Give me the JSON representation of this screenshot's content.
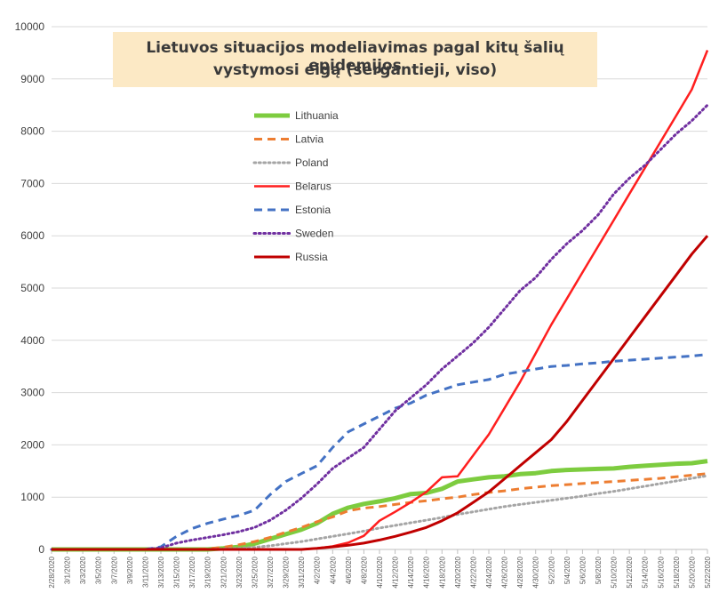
{
  "chart_data": {
    "type": "line",
    "title_lines": [
      "Lietuvos situacijos modeliavimas pagal kitų šalių epidemijos",
      "vystymosi eigą (sergantieji, viso)"
    ],
    "xlabel": "",
    "ylabel": "",
    "ylim": [
      0,
      10000
    ],
    "yticks": [
      0,
      1000,
      2000,
      3000,
      4000,
      5000,
      6000,
      7000,
      8000,
      9000,
      10000
    ],
    "grid": "horizontal",
    "legend_position": "upper-left-inside",
    "x_tick_labels": [
      "2/28/2020",
      "3/1/2020",
      "3/3/2020",
      "3/5/2020",
      "3/7/2020",
      "3/9/2020",
      "3/11/2020",
      "3/13/2020",
      "3/15/2020",
      "3/17/2020",
      "3/19/2020",
      "3/21/2020",
      "3/23/2020",
      "3/25/2020",
      "3/27/2020",
      "3/29/2020",
      "3/31/2020",
      "4/2/2020",
      "4/4/2020",
      "4/6/2020",
      "4/8/2020",
      "4/10/2020",
      "4/12/2020",
      "4/14/2020",
      "4/16/2020",
      "4/18/2020",
      "4/20/2020",
      "4/22/2020",
      "4/24/2020",
      "4/26/2020",
      "4/28/2020",
      "4/30/2020",
      "5/2/2020",
      "5/4/2020",
      "5/6/2020",
      "5/8/2020",
      "5/10/2020",
      "5/12/2020",
      "5/14/2020",
      "5/16/2020",
      "5/18/2020",
      "5/20/2020",
      "5/22/2020"
    ],
    "x_dates": [
      "2020-02-28",
      "2020-03-05",
      "2020-03-11",
      "2020-03-13",
      "2020-03-15",
      "2020-03-17",
      "2020-03-19",
      "2020-03-21",
      "2020-03-23",
      "2020-03-25",
      "2020-03-27",
      "2020-03-29",
      "2020-03-31",
      "2020-04-02",
      "2020-04-04",
      "2020-04-06",
      "2020-04-08",
      "2020-04-10",
      "2020-04-12",
      "2020-04-14",
      "2020-04-16",
      "2020-04-18",
      "2020-04-20",
      "2020-04-22",
      "2020-04-24",
      "2020-04-26",
      "2020-04-28",
      "2020-04-30",
      "2020-05-02",
      "2020-05-04",
      "2020-05-06",
      "2020-05-08",
      "2020-05-10",
      "2020-05-12",
      "2020-05-14",
      "2020-05-16",
      "2020-05-18",
      "2020-05-20",
      "2020-05-22"
    ],
    "series": [
      {
        "name": "Lithuania",
        "color": "#7dcc3f",
        "dash": "solid",
        "width": 5,
        "values": [
          0,
          0,
          0,
          0,
          0,
          0,
          0,
          20,
          50,
          110,
          200,
          290,
          380,
          500,
          680,
          800,
          870,
          920,
          980,
          1060,
          1080,
          1160,
          1300,
          1340,
          1380,
          1400,
          1440,
          1460,
          1500,
          1520,
          1530,
          1540,
          1550,
          1580,
          1600,
          1620,
          1640,
          1650,
          1690
        ]
      },
      {
        "name": "Latvia",
        "color": "#ed7d31",
        "dash": "dash",
        "width": 3,
        "values": [
          0,
          0,
          0,
          0,
          0,
          0,
          10,
          40,
          90,
          150,
          230,
          330,
          420,
          530,
          620,
          740,
          790,
          820,
          860,
          900,
          930,
          970,
          1000,
          1050,
          1090,
          1120,
          1160,
          1190,
          1220,
          1240,
          1260,
          1280,
          1300,
          1320,
          1340,
          1360,
          1390,
          1420,
          1450
        ]
      },
      {
        "name": "Poland",
        "color": "#a5a5a5",
        "dash": "dot",
        "width": 3,
        "values": [
          0,
          0,
          0,
          0,
          0,
          0,
          0,
          10,
          20,
          40,
          70,
          110,
          150,
          200,
          250,
          300,
          350,
          410,
          460,
          510,
          560,
          610,
          670,
          720,
          770,
          820,
          860,
          900,
          940,
          980,
          1020,
          1070,
          1110,
          1160,
          1210,
          1260,
          1310,
          1360,
          1410
        ]
      },
      {
        "name": "Belarus",
        "color": "#ff1f1f",
        "dash": "solid",
        "width": 2.5,
        "values": [
          0,
          0,
          0,
          0,
          0,
          0,
          0,
          0,
          0,
          0,
          0,
          0,
          0,
          20,
          60,
          130,
          260,
          550,
          720,
          900,
          1100,
          1380,
          1400,
          1800,
          2200,
          2700,
          3200,
          3750,
          4300,
          4800,
          5300,
          5800,
          6300,
          6800,
          7300,
          7800,
          8300,
          8800,
          9550
        ]
      },
      {
        "name": "Estonia",
        "color": "#4472c4",
        "dash": "dash",
        "width": 3,
        "values": [
          0,
          0,
          0,
          50,
          250,
          400,
          500,
          580,
          650,
          750,
          1050,
          1300,
          1450,
          1600,
          1950,
          2250,
          2400,
          2550,
          2700,
          2800,
          2950,
          3050,
          3150,
          3200,
          3250,
          3350,
          3400,
          3450,
          3500,
          3520,
          3550,
          3570,
          3600,
          3620,
          3640,
          3660,
          3680,
          3700,
          3730
        ]
      },
      {
        "name": "Sweden",
        "color": "#7030a0",
        "dash": "dot",
        "width": 3,
        "values": [
          0,
          0,
          0,
          30,
          120,
          180,
          230,
          280,
          340,
          420,
          560,
          750,
          980,
          1250,
          1550,
          1750,
          1950,
          2300,
          2650,
          2900,
          3150,
          3450,
          3700,
          3950,
          4250,
          4600,
          4950,
          5200,
          5550,
          5850,
          6100,
          6400,
          6800,
          7100,
          7350,
          7650,
          7950,
          8200,
          8500
        ]
      },
      {
        "name": "Russia",
        "color": "#c00000",
        "dash": "solid",
        "width": 3,
        "values": [
          0,
          0,
          0,
          0,
          0,
          0,
          0,
          0,
          0,
          0,
          0,
          0,
          0,
          20,
          50,
          80,
          120,
          180,
          250,
          330,
          420,
          550,
          700,
          900,
          1100,
          1350,
          1600,
          1850,
          2100,
          2450,
          2850,
          3250,
          3650,
          4050,
          4450,
          4850,
          5250,
          5650,
          6000
        ]
      }
    ]
  }
}
